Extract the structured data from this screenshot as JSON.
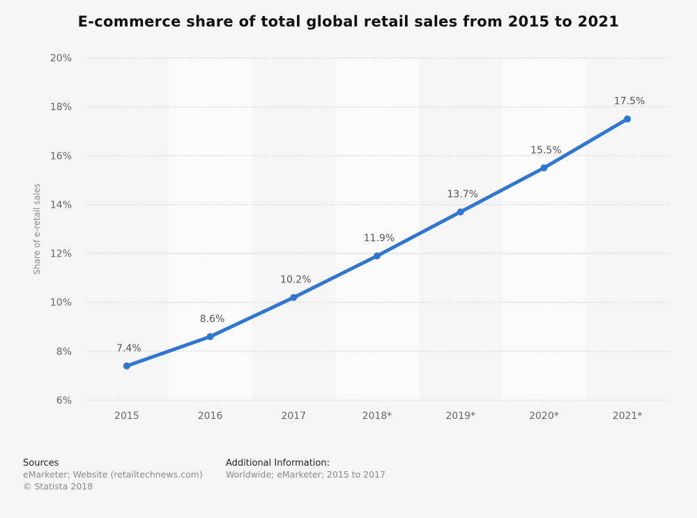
{
  "title": "E-commerce share of total global retail sales from 2015 to 2021",
  "chart_data": {
    "type": "line",
    "title": "E-commerce share of total global retail sales from 2015 to 2021",
    "xlabel": "",
    "ylabel": "Share of e-retail sales",
    "categories": [
      "2015",
      "2016",
      "2017",
      "2018*",
      "2019*",
      "2020*",
      "2021*"
    ],
    "series": [
      {
        "values": [
          7.4,
          8.6,
          10.2,
          11.9,
          13.7,
          15.5,
          17.5
        ]
      }
    ],
    "data_labels": [
      "7.4%",
      "8.6%",
      "10.2%",
      "11.9%",
      "13.7%",
      "15.5%",
      "17.5%"
    ],
    "ylim": [
      6,
      20
    ],
    "yticks": [
      6,
      8,
      10,
      12,
      14,
      16,
      18,
      20
    ],
    "ytick_labels": [
      "6%",
      "8%",
      "10%",
      "12%",
      "14%",
      "16%",
      "18%",
      "20%"
    ],
    "grid": true,
    "line_color": "#2f76d1"
  },
  "footer": {
    "sources_heading": "Sources",
    "sources_line1": "eMarketer; Website (retailtechnews.com)",
    "sources_line2": "© Statista 2018",
    "additional_heading": "Additional Information:",
    "additional_line1": "Worldwide; eMarketer; 2015 to 2017"
  }
}
